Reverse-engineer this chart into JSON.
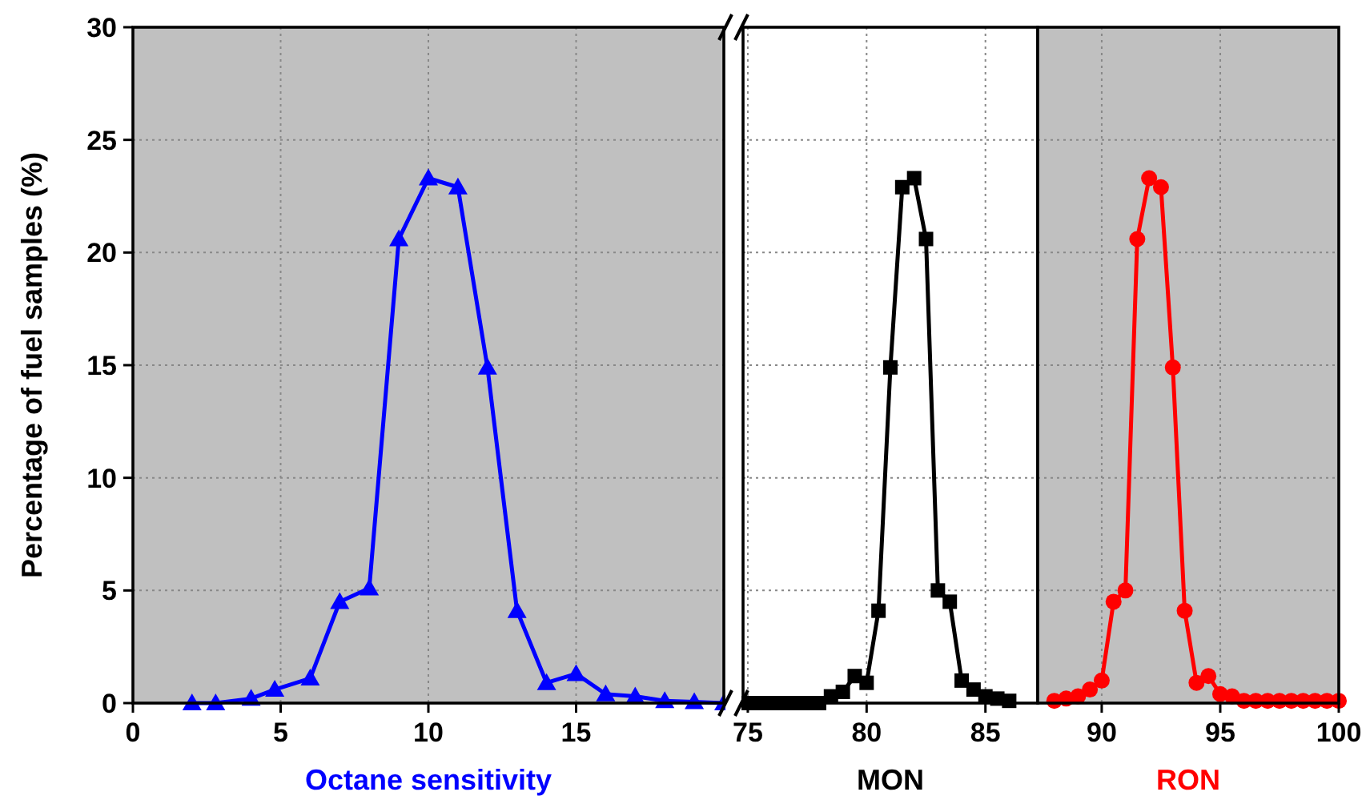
{
  "chart_data": [
    {
      "type": "line",
      "xlabel": "Octane sensitivity",
      "ylabel": "Percentage of fuel samples (%)",
      "xlim": [
        0,
        20
      ],
      "xticks": [
        0,
        5,
        10,
        15
      ],
      "ylim": [
        0,
        30
      ],
      "yticks": [
        0,
        5,
        10,
        15,
        20,
        25,
        30
      ],
      "grid": true,
      "marker": "triangle",
      "line_style": "solid",
      "series": [
        {
          "color": "#0000ff",
          "x": [
            2,
            2.8,
            4,
            4.8,
            6,
            7,
            8,
            9,
            10,
            11,
            12,
            13,
            14,
            15,
            16,
            17,
            18,
            19,
            20
          ],
          "values": [
            0,
            0,
            0.2,
            0.6,
            1.1,
            4.5,
            5.1,
            20.6,
            23.3,
            22.9,
            14.9,
            4.1,
            0.9,
            1.3,
            0.4,
            0.3,
            0.1,
            0.05,
            0
          ]
        }
      ]
    },
    {
      "type": "line",
      "xlabel": "MON",
      "xlim": [
        74.8,
        87.2
      ],
      "xticks": [
        75,
        80,
        85
      ],
      "ylim": [
        0,
        30
      ],
      "yticks": [
        0,
        5,
        10,
        15,
        20,
        25,
        30
      ],
      "grid": true,
      "tick_labels": "x",
      "marker": "square",
      "line_style": "solid",
      "series": [
        {
          "color": "#000000",
          "x": [
            75,
            75.5,
            76,
            76.5,
            77,
            77.5,
            78,
            78.5,
            79,
            79.5,
            80,
            80.5,
            81,
            81.5,
            82,
            82.5,
            83,
            83.5,
            84,
            84.5,
            85,
            85.5,
            86
          ],
          "values": [
            0,
            0,
            0,
            0,
            0,
            0,
            0,
            0.3,
            0.5,
            1.2,
            0.9,
            4.1,
            14.9,
            22.9,
            23.3,
            20.6,
            5.0,
            4.5,
            1.0,
            0.6,
            0.3,
            0.2,
            0.1
          ]
        }
      ]
    },
    {
      "type": "line",
      "xlabel": "RON",
      "xlim": [
        87.3,
        100
      ],
      "xticks": [
        90,
        95,
        100
      ],
      "ylim": [
        0,
        30
      ],
      "yticks": [
        0,
        5,
        10,
        15,
        20,
        25,
        30
      ],
      "grid": true,
      "tick_labels": "x",
      "marker": "circle",
      "line_style": "solid",
      "series": [
        {
          "color": "#ff0000",
          "x": [
            88,
            88.5,
            89,
            89.5,
            90,
            90.5,
            91,
            91.5,
            92,
            92.5,
            93,
            93.5,
            94,
            94.5,
            95,
            95.5,
            96,
            96.5,
            97,
            97.5,
            98,
            98.5,
            99,
            99.5,
            100
          ],
          "values": [
            0.1,
            0.2,
            0.3,
            0.6,
            1.0,
            4.5,
            5.0,
            20.6,
            23.3,
            22.9,
            14.9,
            4.1,
            0.9,
            1.2,
            0.4,
            0.3,
            0.1,
            0.1,
            0.1,
            0.1,
            0.1,
            0.1,
            0.1,
            0.1,
            0.1
          ]
        }
      ]
    }
  ]
}
